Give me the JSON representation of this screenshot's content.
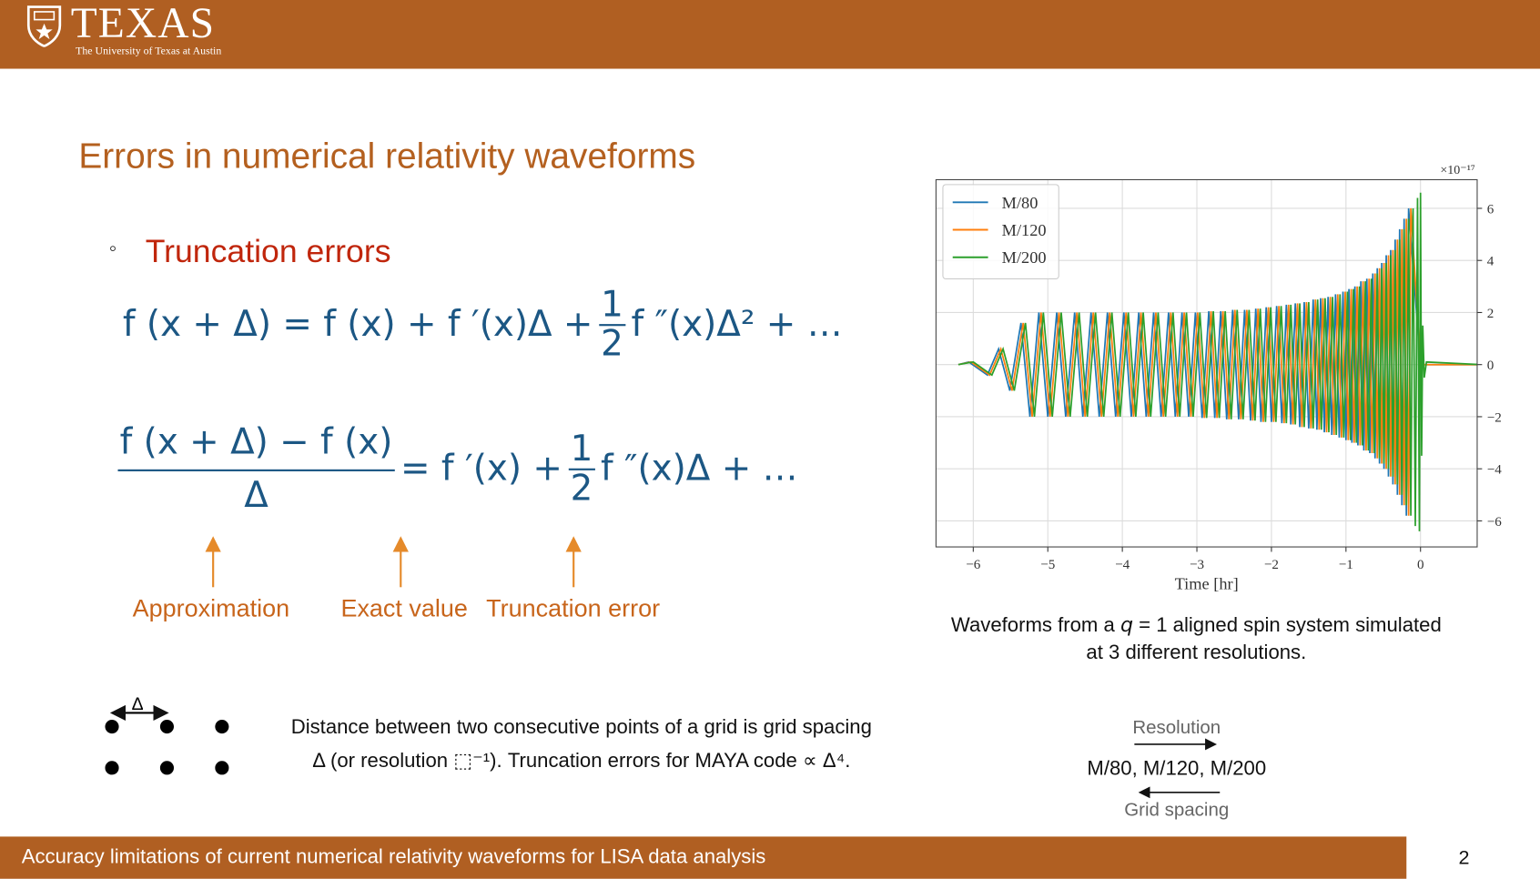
{
  "header": {
    "logo_text": "TEXAS",
    "logo_subtitle": "The University of Texas at Austin"
  },
  "title": "Errors in numerical relativity waveforms",
  "bullet": "Truncation errors",
  "equations": [
    {
      "lhs": "f (x + Δ) = f (x) + f ′(x)Δ +",
      "frac_num": "1",
      "frac_den": "2",
      "rest": "f ″(x)Δ² + …"
    },
    {
      "num": "f (x + Δ) − f (x)",
      "den": "Δ",
      "mid": "= f ′(x) +",
      "frac_num": "1",
      "frac_den": "2",
      "rest": "f ″(x)Δ + …"
    }
  ],
  "annotations": [
    "Approximation",
    "Exact value",
    "Truncation error"
  ],
  "grid_note": {
    "symbol": "Δ",
    "lines": [
      "Distance between two consecutive points of a grid is grid spacing",
      "Δ (or resolution ⬚⁻¹). Truncation errors for MAYA code ∝ Δ⁴."
    ]
  },
  "chart_data": {
    "type": "line",
    "x_label": "Time [hr]",
    "y_scale_label": "×10⁻¹⁷",
    "grid": true,
    "legend": "upper left",
    "xlim": [
      -6.5,
      0.76
    ],
    "ylim": [
      -7,
      7.1
    ],
    "xticks": [
      {
        "value": -6,
        "label": "−6"
      },
      {
        "value": -5,
        "label": "−5"
      },
      {
        "value": -4,
        "label": "−4"
      },
      {
        "value": -3,
        "label": "−3"
      },
      {
        "value": -2,
        "label": "−2"
      },
      {
        "value": -1,
        "label": "−1"
      },
      0
    ],
    "yticks": [
      {
        "value": -6,
        "label": "−6"
      },
      {
        "value": -4,
        "label": "−4"
      },
      {
        "value": -2,
        "label": "−2"
      },
      0,
      2,
      4,
      6
    ],
    "series": [
      {
        "name": "M/80",
        "color": "#1f77b4",
        "x": [
          -6.2,
          -6.06,
          -5.81,
          -5.66,
          -5.51,
          -5.36,
          -5.24,
          -5.12,
          -5.0,
          -4.88,
          -4.76,
          -4.64,
          -4.53,
          -4.42,
          -4.31,
          -4.2,
          -4.09,
          -3.98,
          -3.88,
          -3.78,
          -3.68,
          -3.58,
          -3.48,
          -3.38,
          -3.29,
          -3.2,
          -3.11,
          -3.02,
          -2.93,
          -2.84,
          -2.76,
          -2.68,
          -2.6,
          -2.52,
          -2.44,
          -2.36,
          -2.28,
          -2.21,
          -2.14,
          -2.07,
          -2.0,
          -1.93,
          -1.86,
          -1.8,
          -1.74,
          -1.68,
          -1.62,
          -1.56,
          -1.5,
          -1.44,
          -1.39,
          -1.34,
          -1.29,
          -1.24,
          -1.19,
          -1.14,
          -1.09,
          -1.04,
          -1.0,
          -0.96,
          -0.92,
          -0.88,
          -0.84,
          -0.8,
          -0.76,
          -0.72,
          -0.68,
          -0.64,
          -0.61,
          -0.58,
          -0.55,
          -0.52,
          -0.49,
          -0.46,
          -0.43,
          -0.4,
          -0.37,
          -0.34,
          -0.31,
          -0.28,
          -0.25,
          -0.22,
          -0.19,
          -0.16,
          0,
          0.8
        ],
        "values": [
          0,
          0.1,
          -0.4,
          0.6,
          -1.0,
          1.6,
          -2.0,
          2.0,
          -2.0,
          2.0,
          -2.0,
          2.0,
          -2.0,
          2.0,
          -2.0,
          2.0,
          -2.0,
          2.0,
          -2.0,
          2.0,
          -2.0,
          2.0,
          -2.0,
          2.0,
          -2.0,
          2.0,
          -2.0,
          2.0,
          -2.05,
          2.05,
          -2.05,
          2.05,
          -2.1,
          2.1,
          -2.1,
          2.1,
          -2.15,
          2.15,
          -2.2,
          2.2,
          -2.2,
          2.25,
          -2.25,
          2.3,
          -2.3,
          2.35,
          -2.4,
          2.4,
          -2.45,
          2.5,
          -2.5,
          2.55,
          -2.6,
          2.6,
          -2.7,
          2.7,
          -2.8,
          2.8,
          -2.9,
          2.9,
          -3.0,
          3.0,
          -3.1,
          3.2,
          -3.3,
          3.3,
          -3.4,
          3.5,
          -3.6,
          3.7,
          -3.8,
          3.9,
          -4.0,
          4.2,
          -4.3,
          4.4,
          -4.6,
          4.8,
          -5.0,
          5.2,
          -5.4,
          5.6,
          -5.8,
          6.0,
          0,
          0
        ]
      },
      {
        "name": "M/120",
        "color": "#ff7f0e",
        "x": [
          -6.2,
          -6.03,
          -5.78,
          -5.63,
          -5.48,
          -5.33,
          -5.21,
          -5.09,
          -4.97,
          -4.85,
          -4.73,
          -4.61,
          -4.5,
          -4.39,
          -4.28,
          -4.17,
          -4.06,
          -3.95,
          -3.85,
          -3.75,
          -3.65,
          -3.55,
          -3.45,
          -3.35,
          -3.26,
          -3.17,
          -3.08,
          -2.99,
          -2.9,
          -2.81,
          -2.73,
          -2.65,
          -2.57,
          -2.49,
          -2.41,
          -2.33,
          -2.25,
          -2.18,
          -2.11,
          -2.04,
          -1.97,
          -1.9,
          -1.83,
          -1.77,
          -1.71,
          -1.65,
          -1.59,
          -1.53,
          -1.47,
          -1.41,
          -1.36,
          -1.31,
          -1.26,
          -1.21,
          -1.16,
          -1.11,
          -1.06,
          -1.01,
          -0.97,
          -0.93,
          -0.89,
          -0.85,
          -0.81,
          -0.77,
          -0.73,
          -0.69,
          -0.65,
          -0.61,
          -0.58,
          -0.55,
          -0.52,
          -0.49,
          -0.46,
          -0.43,
          -0.4,
          -0.37,
          -0.34,
          -0.31,
          -0.28,
          -0.25,
          -0.22,
          -0.19,
          -0.16,
          -0.13,
          0,
          0.8
        ],
        "values": [
          0,
          0.1,
          -0.4,
          0.6,
          -1.0,
          1.6,
          -2.0,
          2.0,
          -2.0,
          2.0,
          -2.0,
          2.0,
          -2.0,
          2.0,
          -2.0,
          2.0,
          -2.0,
          2.0,
          -2.0,
          2.0,
          -2.0,
          2.0,
          -2.0,
          2.0,
          -2.0,
          2.0,
          -2.0,
          2.0,
          -2.05,
          2.05,
          -2.05,
          2.05,
          -2.1,
          2.1,
          -2.1,
          2.1,
          -2.15,
          2.15,
          -2.2,
          2.2,
          -2.2,
          2.25,
          -2.25,
          2.3,
          -2.3,
          2.35,
          -2.4,
          2.4,
          -2.45,
          2.5,
          -2.5,
          2.55,
          -2.6,
          2.6,
          -2.7,
          2.7,
          -2.8,
          2.8,
          -2.9,
          2.9,
          -3.0,
          3.0,
          -3.1,
          3.2,
          -3.3,
          3.3,
          -3.4,
          3.5,
          -3.6,
          3.7,
          -3.8,
          3.9,
          -4.0,
          4.2,
          -4.3,
          4.4,
          -4.6,
          4.8,
          -5.0,
          5.2,
          -5.4,
          5.6,
          -5.8,
          6.0,
          0,
          0
        ]
      },
      {
        "name": "M/200",
        "color": "#2ca02c",
        "x": [
          -6.2,
          -6.0,
          -5.75,
          -5.6,
          -5.45,
          -5.3,
          -5.18,
          -5.06,
          -4.94,
          -4.82,
          -4.7,
          -4.58,
          -4.47,
          -4.36,
          -4.25,
          -4.14,
          -4.03,
          -3.92,
          -3.82,
          -3.72,
          -3.62,
          -3.52,
          -3.42,
          -3.32,
          -3.23,
          -3.14,
          -3.05,
          -2.96,
          -2.87,
          -2.78,
          -2.7,
          -2.62,
          -2.54,
          -2.46,
          -2.38,
          -2.3,
          -2.22,
          -2.15,
          -2.08,
          -2.01,
          -1.94,
          -1.87,
          -1.8,
          -1.74,
          -1.68,
          -1.62,
          -1.56,
          -1.5,
          -1.44,
          -1.38,
          -1.33,
          -1.28,
          -1.23,
          -1.18,
          -1.13,
          -1.08,
          -1.03,
          -0.98,
          -0.94,
          -0.9,
          -0.86,
          -0.82,
          -0.78,
          -0.74,
          -0.7,
          -0.66,
          -0.62,
          -0.58,
          -0.55,
          -0.52,
          -0.49,
          -0.46,
          -0.43,
          -0.4,
          -0.37,
          -0.34,
          -0.31,
          -0.28,
          -0.25,
          -0.22,
          -0.19,
          -0.16,
          -0.13,
          -0.1,
          -0.07,
          -0.04,
          -0.015,
          0,
          0.015,
          0.03,
          0.05,
          0.08,
          0.8
        ],
        "values": [
          0,
          0.1,
          -0.4,
          0.6,
          -1.0,
          1.6,
          -2.0,
          2.0,
          -2.0,
          2.0,
          -2.0,
          2.0,
          -2.0,
          2.0,
          -2.0,
          2.0,
          -2.0,
          2.0,
          -2.0,
          2.0,
          -2.0,
          2.0,
          -2.0,
          2.0,
          -2.0,
          2.0,
          -2.0,
          2.0,
          -2.05,
          2.05,
          -2.05,
          2.05,
          -2.1,
          2.1,
          -2.1,
          2.1,
          -2.15,
          2.15,
          -2.2,
          2.2,
          -2.2,
          2.25,
          -2.25,
          2.3,
          -2.3,
          2.35,
          -2.4,
          2.4,
          -2.45,
          2.5,
          -2.5,
          2.55,
          -2.6,
          2.6,
          -2.7,
          2.7,
          -2.8,
          2.8,
          -2.9,
          2.9,
          -3.0,
          3.0,
          -3.1,
          3.2,
          -3.3,
          3.3,
          -3.4,
          3.5,
          -3.6,
          3.7,
          -3.8,
          3.9,
          -4.0,
          4.2,
          -4.3,
          4.4,
          -4.6,
          4.8,
          -5.0,
          5.2,
          -5.4,
          5.6,
          -5.8,
          6.0,
          -6.2,
          6.4,
          -6.4,
          6.6,
          -3.5,
          1.5,
          -0.5,
          0.1,
          0
        ]
      }
    ]
  },
  "caption": {
    "line1_start": "Waveforms from a ",
    "q": "q",
    "line1_end": " = 1 aligned spin system simulated",
    "line2": "at 3 different resolutions."
  },
  "resolution_diagram": {
    "top": "Resolution",
    "middle": "M/80, M/120, M/200",
    "bottom": "Grid spacing"
  },
  "footer": {
    "text": "Accuracy limitations of current numerical relativity waveforms for LISA data analysis",
    "page": 2
  }
}
